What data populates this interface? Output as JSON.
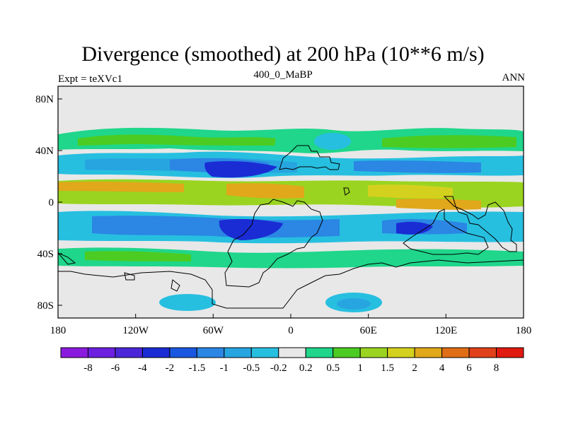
{
  "title": "Divergence (smoothed) at 200 hPa (10**6 m/s)",
  "left_string": "Expt = teXVc1",
  "center_string": "400_0_MaBP",
  "right_string": "ANN",
  "colors": {
    "background": "#e8e8e8",
    "coast": "#000000"
  },
  "chart_data": {
    "type": "contour-map",
    "x_ticks": [
      "180",
      "120W",
      "60W",
      "0",
      "60E",
      "120E",
      "180"
    ],
    "y_ticks": [
      "80N",
      "40N",
      "0",
      "40S",
      "80S"
    ],
    "colorbar": {
      "labels": [
        "-8",
        "-6",
        "-4",
        "-2",
        "-1.5",
        "-1",
        "-0.5",
        "-0.2",
        "0.2",
        "0.5",
        "1",
        "1.5",
        "2",
        "4",
        "6",
        "8"
      ],
      "colors": [
        "#8b1adf",
        "#6d1fe0",
        "#4a26d8",
        "#1a2cd4",
        "#1a57e0",
        "#2b86e4",
        "#27a5e0",
        "#27bfe0",
        "#e8e8e8",
        "#1fd68a",
        "#4ccc22",
        "#9ad420",
        "#d4d11e",
        "#e0a81a",
        "#e06e16",
        "#e0401a",
        "#e01a10"
      ]
    }
  }
}
